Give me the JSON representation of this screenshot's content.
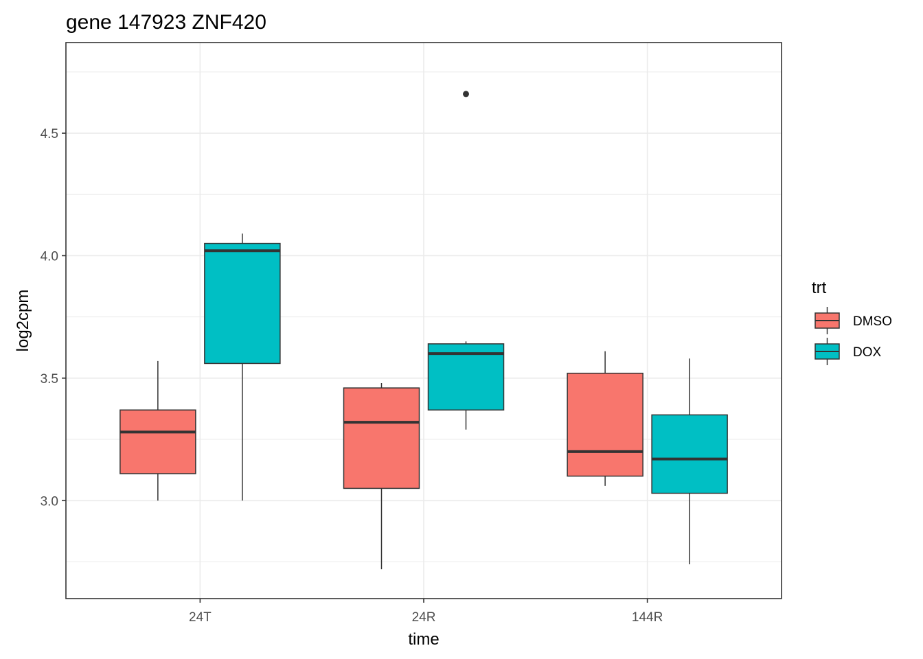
{
  "chart_data": {
    "type": "boxplot",
    "title": "gene 147923 ZNF420",
    "xlabel": "time",
    "ylabel": "log2cpm",
    "categories": [
      "24T",
      "24R",
      "144R"
    ],
    "ylim": [
      2.6,
      4.87
    ],
    "yticks": [
      3.0,
      3.5,
      4.0,
      4.5
    ],
    "ytick_labels": [
      "3.0",
      "3.5",
      "4.0",
      "4.5"
    ],
    "grid": true,
    "legend": {
      "title": "trt",
      "position": "right",
      "entries": [
        "DMSO",
        "DOX"
      ]
    },
    "colors": {
      "DMSO": "#F8766D",
      "DOX": "#00BFC4",
      "outline": "#333333",
      "grid": "#ebebeb",
      "panel_border": "#333333"
    },
    "series": [
      {
        "name": "DMSO",
        "boxes": [
          {
            "category": "24T",
            "whisker_low": 3.0,
            "q1": 3.11,
            "median": 3.28,
            "q3": 3.37,
            "whisker_high": 3.57
          },
          {
            "category": "24R",
            "whisker_low": 2.72,
            "q1": 3.05,
            "median": 3.32,
            "q3": 3.46,
            "whisker_high": 3.48
          },
          {
            "category": "144R",
            "whisker_low": 3.06,
            "q1": 3.1,
            "median": 3.2,
            "q3": 3.52,
            "whisker_high": 3.61
          }
        ],
        "outliers": []
      },
      {
        "name": "DOX",
        "boxes": [
          {
            "category": "24T",
            "whisker_low": 3.0,
            "q1": 3.56,
            "median": 4.02,
            "q3": 4.05,
            "whisker_high": 4.09
          },
          {
            "category": "24R",
            "whisker_low": 3.29,
            "q1": 3.37,
            "median": 3.6,
            "q3": 3.64,
            "whisker_high": 3.65
          },
          {
            "category": "144R",
            "whisker_low": 2.74,
            "q1": 3.03,
            "median": 3.17,
            "q3": 3.35,
            "whisker_high": 3.58
          }
        ],
        "outliers": [
          {
            "category": "24R",
            "value": 4.66
          }
        ]
      }
    ]
  }
}
